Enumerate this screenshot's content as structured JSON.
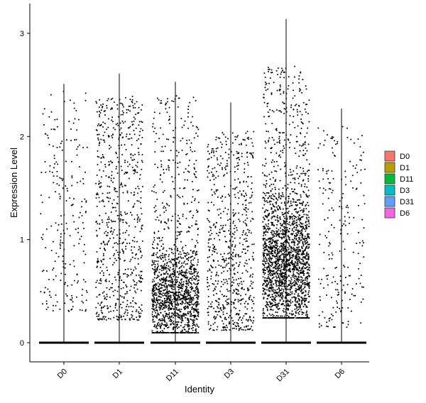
{
  "chart_data": {
    "type": "violin",
    "title": "",
    "xlabel": "Identity",
    "ylabel": "Expression Level",
    "ylim": [
      -0.18,
      3.2
    ],
    "yticks": [
      0,
      1,
      2,
      3
    ],
    "categories": [
      "D0",
      "D1",
      "D11",
      "D3",
      "D31",
      "D6"
    ],
    "series": [
      {
        "name": "D0",
        "color": "#F8766D",
        "n_points": 230,
        "max": 2.51,
        "dense_low": 0.3,
        "dense_high": 2.45,
        "zero_band": true
      },
      {
        "name": "D1",
        "color": "#B79F00",
        "n_points": 700,
        "max": 2.61,
        "dense_low": 0.22,
        "dense_high": 2.4,
        "zero_band": true
      },
      {
        "name": "D11",
        "color": "#00BA38",
        "n_points": 1500,
        "max": 2.53,
        "dense_low": 0.12,
        "dense_high": 2.4,
        "zero_band": true
      },
      {
        "name": "D3",
        "color": "#00BFC4",
        "n_points": 700,
        "max": 2.33,
        "dense_low": 0.12,
        "dense_high": 2.05,
        "zero_band": true
      },
      {
        "name": "D31",
        "color": "#619CFF",
        "n_points": 2200,
        "max": 3.14,
        "dense_low": 0.3,
        "dense_high": 2.7,
        "zero_band": true
      },
      {
        "name": "D6",
        "color": "#F564E3",
        "n_points": 220,
        "max": 2.27,
        "dense_low": 0.15,
        "dense_high": 2.1,
        "zero_band": true
      }
    ],
    "legend": {
      "position": "right",
      "entries": [
        "D0",
        "D1",
        "D11",
        "D3",
        "D31",
        "D6"
      ]
    },
    "grid": false
  }
}
